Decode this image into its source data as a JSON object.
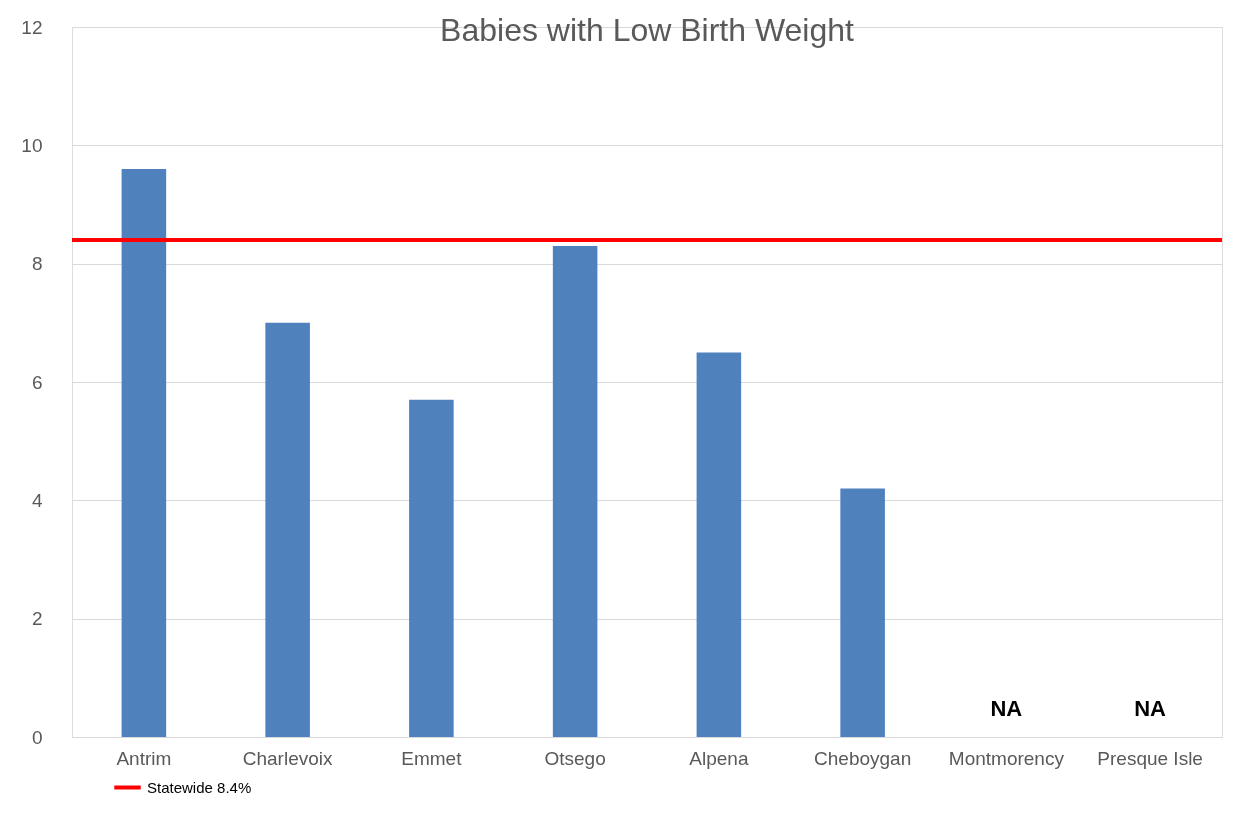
{
  "chart_data": {
    "type": "bar",
    "title": "Babies with Low Birth Weight",
    "categories": [
      "Antrim",
      "Charlevoix",
      "Emmet",
      "Otsego",
      "Alpena",
      "Cheboygan",
      "Montmorency",
      "Presque Isle"
    ],
    "values": [
      9.6,
      7.0,
      5.7,
      8.3,
      6.5,
      4.2,
      null,
      null
    ],
    "value_labels": [
      null,
      null,
      null,
      null,
      null,
      null,
      "NA",
      "NA"
    ],
    "color": "#4f81bd",
    "ylim": [
      0,
      12
    ],
    "yticks": [
      0,
      2,
      4,
      6,
      8,
      10,
      12
    ],
    "grid": "y",
    "ref_lines": [
      {
        "axis": "y",
        "value": 8.4,
        "label": "Statewide 8.4%",
        "color": "#ff0000"
      }
    ],
    "legend": "bottom left"
  }
}
